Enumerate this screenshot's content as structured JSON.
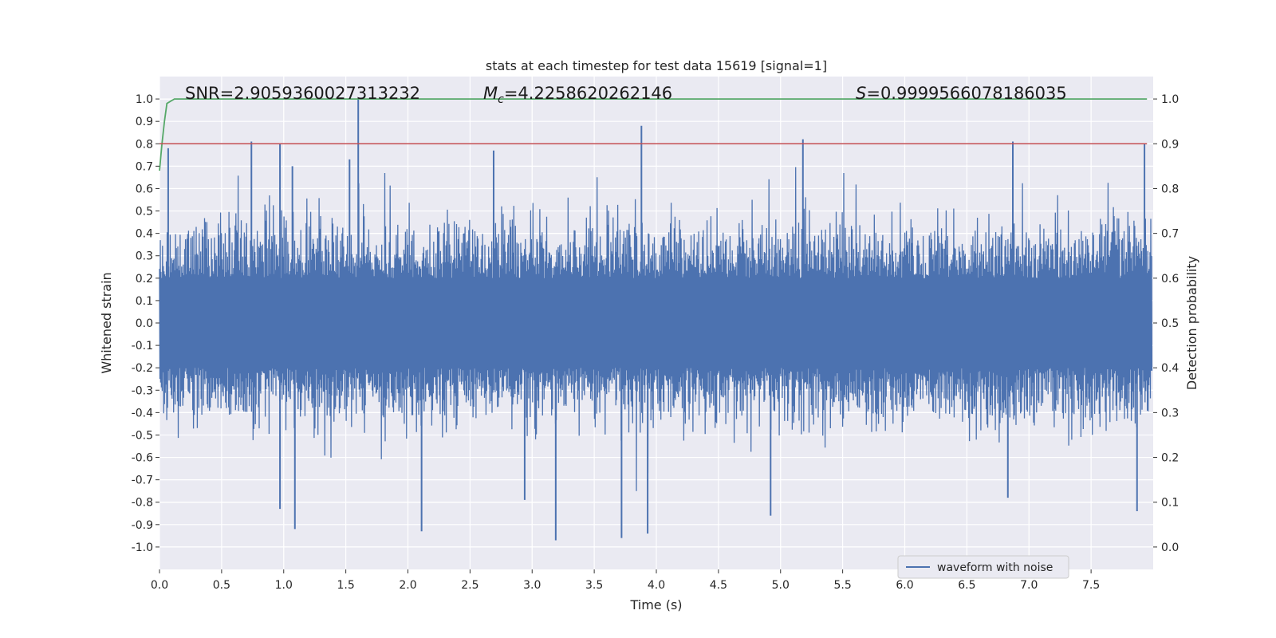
{
  "chart_data": {
    "type": "line",
    "title": "stats at each timestep for test data 15619 [signal=1]",
    "xlabel": "Time (s)",
    "ylabel": "Whitened strain",
    "y2label": "Detection probability",
    "xlim": [
      0.0,
      8.0
    ],
    "ylim": [
      -1.1,
      1.1
    ],
    "y2lim": [
      -0.05,
      1.05
    ],
    "xticks": [
      "0.0",
      "0.5",
      "1.0",
      "1.5",
      "2.0",
      "2.5",
      "3.0",
      "3.5",
      "4.0",
      "4.5",
      "5.0",
      "5.5",
      "6.0",
      "6.5",
      "7.0",
      "7.5"
    ],
    "yticks": [
      "1.0",
      "0.9",
      "0.8",
      "0.7",
      "0.6",
      "0.5",
      "0.4",
      "0.3",
      "0.2",
      "0.1",
      "0.0",
      "-0.1",
      "-0.2",
      "-0.3",
      "-0.4",
      "-0.5",
      "-0.6",
      "-0.7",
      "-0.8",
      "-0.9",
      "-1.0"
    ],
    "y2ticks": [
      "1.0",
      "0.9",
      "0.8",
      "0.7",
      "0.6",
      "0.5",
      "0.4",
      "0.3",
      "0.2",
      "0.1",
      "0.0"
    ],
    "annotations": {
      "snr": "SNR=2.9059360027313232",
      "mc_symbol": "M",
      "mc_sub": "c",
      "mc_value": "=4.2258620262146",
      "s_symbol": "S",
      "s_value": "=0.9999566078186035"
    },
    "legend": {
      "label": "waveform with noise",
      "placement": "lower-right"
    },
    "grid": true,
    "colors": {
      "waveform": "#4c72b0",
      "probability": "#55a868",
      "threshold": "#c44e52",
      "background": "#eaeaf2"
    },
    "threshold": {
      "axis": "y2",
      "value": 0.9
    },
    "series": [
      {
        "name": "waveform with noise",
        "axis": "y",
        "style": "dense noise trace, mostly within ±0.35 with spikes",
        "peaks": [
          {
            "t": 0.07,
            "v": 0.78
          },
          {
            "t": 0.74,
            "v": 0.81
          },
          {
            "t": 0.97,
            "v": 0.8
          },
          {
            "t": 1.07,
            "v": 0.7
          },
          {
            "t": 1.6,
            "v": 1.0
          },
          {
            "t": 1.53,
            "v": 0.73
          },
          {
            "t": 2.69,
            "v": 0.77
          },
          {
            "t": 3.88,
            "v": 0.88
          },
          {
            "t": 5.18,
            "v": 0.82
          },
          {
            "t": 6.87,
            "v": 0.81
          },
          {
            "t": 7.93,
            "v": 0.8
          }
        ],
        "troughs": [
          {
            "t": 0.97,
            "v": -0.83
          },
          {
            "t": 1.09,
            "v": -0.92
          },
          {
            "t": 2.11,
            "v": -0.93
          },
          {
            "t": 2.94,
            "v": -0.79
          },
          {
            "t": 3.19,
            "v": -0.97
          },
          {
            "t": 3.72,
            "v": -0.96
          },
          {
            "t": 3.93,
            "v": -0.94
          },
          {
            "t": 4.92,
            "v": -0.86
          },
          {
            "t": 6.83,
            "v": -0.78
          },
          {
            "t": 7.87,
            "v": -0.84
          }
        ]
      },
      {
        "name": "",
        "axis": "y2",
        "x": [
          0.0,
          0.02,
          0.04,
          0.06,
          0.09,
          0.12,
          0.2,
          7.95
        ],
        "y": [
          0.84,
          0.9,
          0.95,
          0.99,
          0.995,
          1.0,
          1.0,
          1.0
        ]
      },
      {
        "name": "",
        "axis": "y2",
        "x": [
          0.0,
          7.95
        ],
        "y": [
          0.9,
          0.9
        ]
      }
    ]
  }
}
